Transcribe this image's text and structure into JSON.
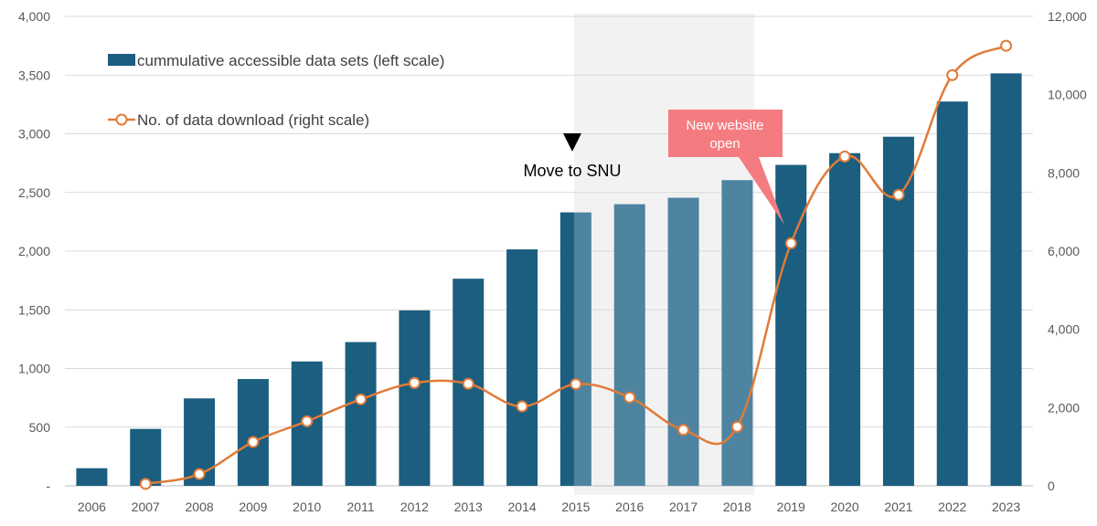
{
  "chart_data": {
    "type": "bar+line",
    "categories": [
      "2006",
      "2007",
      "2008",
      "2009",
      "2010",
      "2011",
      "2012",
      "2013",
      "2014",
      "2015",
      "2016",
      "2017",
      "2018",
      "2019",
      "2020",
      "2021",
      "2022",
      "2023"
    ],
    "series": [
      {
        "name": "cummulative accessible data sets (left scale)",
        "type": "bar",
        "axis": "left",
        "color": "#1b5e80",
        "highlight_color": "#4f84a1",
        "values": [
          150,
          485,
          745,
          910,
          1060,
          1225,
          1495,
          1765,
          2015,
          2330,
          2400,
          2455,
          2605,
          2735,
          2835,
          2975,
          3275,
          3515
        ]
      },
      {
        "name": "No. of data download (right scale)",
        "type": "line",
        "axis": "right",
        "color": "#e07b39",
        "values": [
          null,
          50,
          300,
          1120,
          1650,
          2210,
          2630,
          2610,
          2030,
          2600,
          2260,
          1430,
          1510,
          6200,
          8420,
          7440,
          10500,
          11250
        ]
      }
    ],
    "left_axis": {
      "min": 0,
      "max": 4000,
      "step": 500,
      "tick_labels": [
        "-",
        "500",
        "1,000",
        "1,500",
        "2,000",
        "2,500",
        "3,000",
        "3,500",
        "4,000"
      ]
    },
    "right_axis": {
      "min": 0,
      "max": 12000,
      "step": 2000,
      "tick_labels": [
        "0",
        "2,000",
        "4,000",
        "6,000",
        "8,000",
        "10,000",
        "12,000"
      ]
    },
    "shaded_period": {
      "from": "2015",
      "to": "2018",
      "color": "#f2f2f2"
    },
    "annotations": {
      "move_to_snu": {
        "text": "Move to SNU",
        "category": "2015"
      },
      "new_website": {
        "line1": "New website",
        "line2": "open",
        "category": "2019",
        "color": "#f47c80"
      }
    },
    "legend": {
      "position": "top-left"
    },
    "grid": true
  }
}
